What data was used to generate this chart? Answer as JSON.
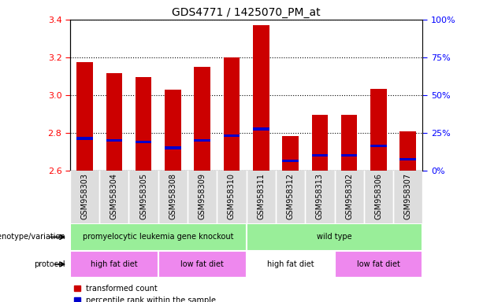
{
  "title": "GDS4771 / 1425070_PM_at",
  "samples": [
    "GSM958303",
    "GSM958304",
    "GSM958305",
    "GSM958308",
    "GSM958309",
    "GSM958310",
    "GSM958311",
    "GSM958312",
    "GSM958313",
    "GSM958302",
    "GSM958306",
    "GSM958307"
  ],
  "bar_tops": [
    3.175,
    3.115,
    3.095,
    3.03,
    3.15,
    3.2,
    3.37,
    2.785,
    2.895,
    2.895,
    3.035,
    2.81
  ],
  "bar_bottoms": [
    2.6,
    2.6,
    2.6,
    2.6,
    2.6,
    2.6,
    2.6,
    2.6,
    2.6,
    2.6,
    2.6,
    2.6
  ],
  "blue_markers": [
    2.77,
    2.76,
    2.75,
    2.72,
    2.76,
    2.785,
    2.82,
    2.65,
    2.68,
    2.68,
    2.73,
    2.66
  ],
  "ylim": [
    2.6,
    3.4
  ],
  "yticks_left": [
    2.6,
    2.8,
    3.0,
    3.2,
    3.4
  ],
  "yticks_right": [
    0,
    25,
    50,
    75,
    100
  ],
  "ytick_right_labels": [
    "0%",
    "25%",
    "50%",
    "75%",
    "100%"
  ],
  "bar_color": "#cc0000",
  "blue_color": "#0000cc",
  "genotype_label": "genotype/variation",
  "protocol_label": "protocol",
  "geno_groups": [
    {
      "label": "promyelocytic leukemia gene knockout",
      "start": 0,
      "end": 6,
      "color": "#99ee99"
    },
    {
      "label": "wild type",
      "start": 6,
      "end": 12,
      "color": "#99ee99"
    }
  ],
  "proto_groups": [
    {
      "label": "high fat diet",
      "start": 0,
      "end": 3,
      "color": "#ee88ee"
    },
    {
      "label": "low fat diet",
      "start": 3,
      "end": 6,
      "color": "#ee88ee"
    },
    {
      "label": "high fat diet",
      "start": 6,
      "end": 9,
      "color": "#ffffff"
    },
    {
      "label": "low fat diet",
      "start": 9,
      "end": 12,
      "color": "#ee88ee"
    }
  ],
  "legend_items": [
    {
      "label": "transformed count",
      "color": "#cc0000"
    },
    {
      "label": "percentile rank within the sample",
      "color": "#0000cc"
    }
  ]
}
